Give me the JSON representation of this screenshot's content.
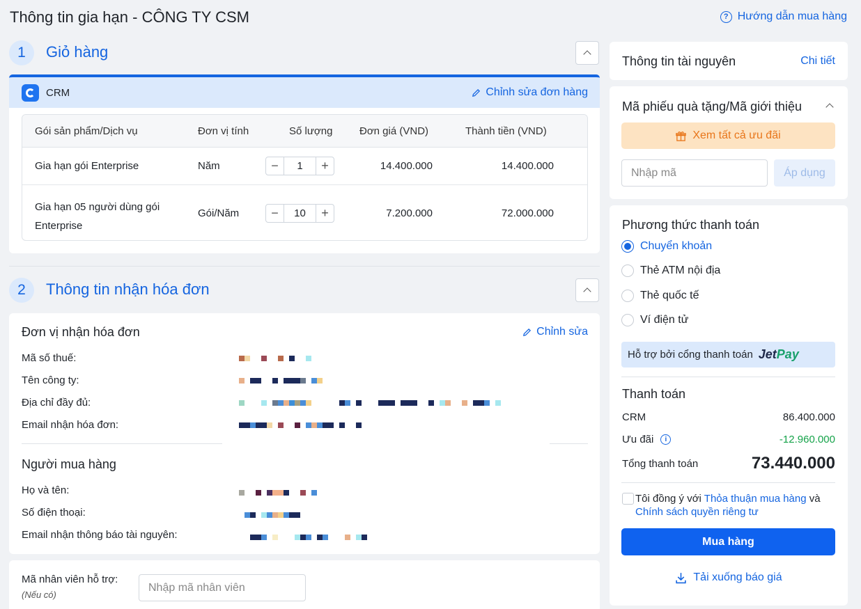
{
  "page": {
    "title": "Thông tin gia hạn - CÔNG TY CSM",
    "help_link": "Hướng dẫn mua hàng"
  },
  "cart": {
    "step": "1",
    "title": "Giỏ hàng",
    "product": "CRM",
    "edit_label": "Chỉnh sửa đơn hàng",
    "columns": [
      "Gói sản phẩm/Dịch vụ",
      "Đơn vị tính",
      "Số lượng",
      "Đơn giá (VND)",
      "Thành tiền (VND)"
    ],
    "rows": [
      {
        "name": "Gia hạn gói Enterprise",
        "unit": "Năm",
        "qty": "1",
        "price": "14.400.000",
        "total": "14.400.000"
      },
      {
        "name_line1": "Gia hạn 05 người dùng gói",
        "name_line2": "Enterprise",
        "unit": "Gói/Năm",
        "qty": "10",
        "price": "7.200.000",
        "total": "72.000.000"
      }
    ]
  },
  "invoice": {
    "step": "2",
    "title": "Thông tin nhận hóa đơn",
    "recipient_heading": "Đơn vị nhận hóa đơn",
    "edit_label": "Chỉnh sửa",
    "fields": [
      "Mã số thuế:",
      "Tên công ty:",
      "Địa chỉ đầy đủ:",
      "Email nhận hóa đơn:"
    ],
    "buyer_heading": "Người mua hàng",
    "buyer_fields": [
      "Họ và tên:",
      "Số điện thoại:",
      "Email nhận thông báo tài nguyên:"
    ]
  },
  "staff": {
    "label": "Mã nhân viên hỗ trợ:",
    "hint": "(Nếu có)",
    "placeholder": "Nhập mã nhân viên"
  },
  "resource": {
    "title": "Thông tin tài nguyên",
    "detail_link": "Chi tiết"
  },
  "voucher": {
    "title": "Mã phiếu quà tặng/Mã giới thiệu",
    "offers_button": "Xem tất cả ưu đãi",
    "input_placeholder": "Nhập mã",
    "apply_button": "Áp dụng"
  },
  "payment": {
    "title": "Phương thức thanh toán",
    "methods": [
      "Chuyển khoản",
      "Thẻ ATM nội địa",
      "Thẻ quốc tế",
      "Ví điện tử"
    ],
    "selected": "Chuyển khoản",
    "gateway_text": "Hỗ trợ bởi cổng thanh toán",
    "gateway_brand_a": "Jet",
    "gateway_brand_b": "Pay"
  },
  "summary": {
    "title": "Thanh toán",
    "crm_label": "CRM",
    "crm_value": "86.400.000",
    "discount_label": "Ưu đãi",
    "discount_value": "-12.960.000",
    "total_label": "Tổng thanh toán",
    "total_value": "73.440.000",
    "agree_prefix": "Tôi đồng ý với",
    "agree_link1": "Thỏa thuận mua hàng",
    "agree_and": "và",
    "agree_link2": "Chính sách quyền riêng tư",
    "buy_button": "Mua hàng",
    "download_link": "Tải xuống báo giá"
  },
  "colors": {
    "primary": "#1565e0",
    "discount": "#16a34a",
    "offer_bg": "#fde3c2",
    "offer_text": "#e8761b"
  }
}
